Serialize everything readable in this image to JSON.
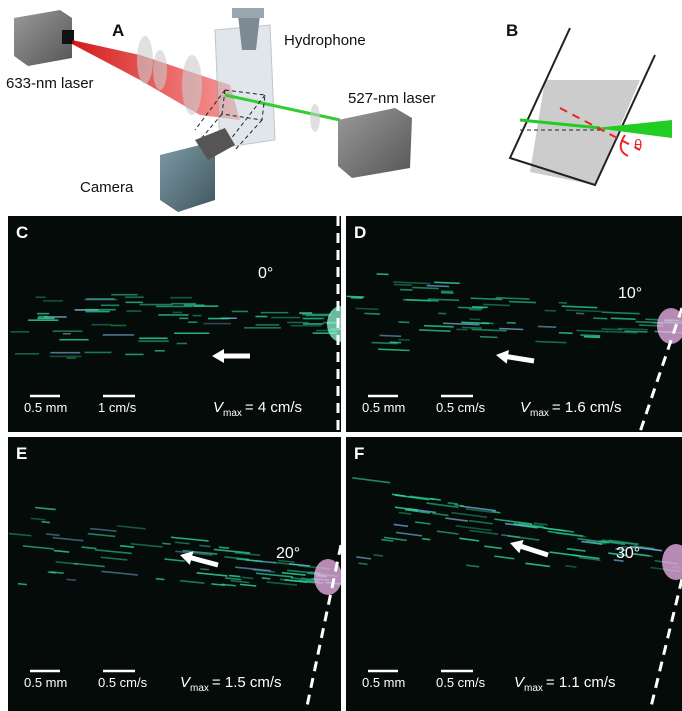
{
  "panel_a": {
    "label": "A",
    "laser_633": "633-nm laser",
    "hydrophone": "Hydrophone",
    "laser_527": "527-nm laser",
    "camera": "Camera"
  },
  "panel_b": {
    "label": "B",
    "angle_symbol": "θ"
  },
  "video_panels": [
    {
      "label": "C",
      "angle": "0°",
      "length_scale": "0.5 mm",
      "velocity_scale": "1 cm/s",
      "vmax": {
        "symbol": "V",
        "subscript": "max",
        "value": "= 4 cm/s"
      }
    },
    {
      "label": "D",
      "angle": "10°",
      "length_scale": "0.5 mm",
      "velocity_scale": "0.5 cm/s",
      "vmax": {
        "symbol": "V",
        "subscript": "max",
        "value": "= 1.6 cm/s"
      }
    },
    {
      "label": "E",
      "angle": "20°",
      "length_scale": "0.5 mm",
      "velocity_scale": "0.5 cm/s",
      "vmax": {
        "symbol": "V",
        "subscript": "max",
        "value": "= 1.5 cm/s"
      }
    },
    {
      "label": "F",
      "angle": "30°",
      "length_scale": "0.5 mm",
      "velocity_scale": "0.5 cm/s",
      "vmax": {
        "symbol": "V",
        "subscript": "max",
        "value": "= 1.1 cm/s"
      }
    }
  ]
}
